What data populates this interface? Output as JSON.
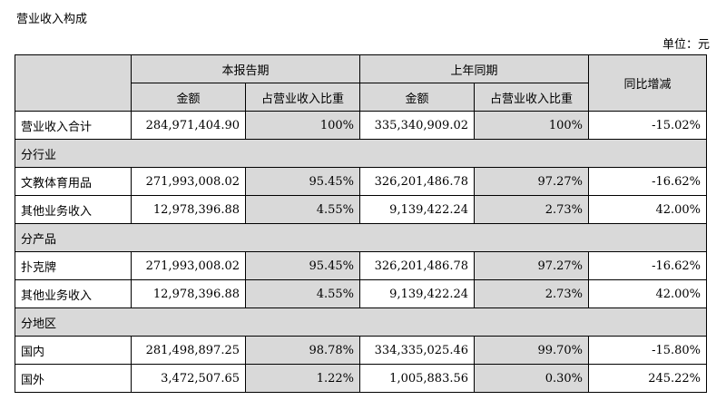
{
  "title": "营业收入构成",
  "unit": "单位：元",
  "header": {
    "current_period": "本报告期",
    "prior_period": "上年同期",
    "amount": "金额",
    "ratio": "占营业收入比重",
    "yoy": "同比增减"
  },
  "rows": [
    {
      "type": "data",
      "label": "营业收入合计",
      "cur_amount": "284,971,404.90",
      "cur_ratio": "100%",
      "prev_amount": "335,340,909.02",
      "prev_ratio": "100%",
      "yoy": "-15.02%"
    },
    {
      "type": "section",
      "label": "分行业"
    },
    {
      "type": "data",
      "label": "文教体育用品",
      "cur_amount": "271,993,008.02",
      "cur_ratio": "95.45%",
      "prev_amount": "326,201,486.78",
      "prev_ratio": "97.27%",
      "yoy": "-16.62%"
    },
    {
      "type": "data",
      "label": "其他业务收入",
      "cur_amount": "12,978,396.88",
      "cur_ratio": "4.55%",
      "prev_amount": "9,139,422.24",
      "prev_ratio": "2.73%",
      "yoy": "42.00%"
    },
    {
      "type": "section",
      "label": "分产品"
    },
    {
      "type": "data",
      "label": "扑克牌",
      "cur_amount": "271,993,008.02",
      "cur_ratio": "95.45%",
      "prev_amount": "326,201,486.78",
      "prev_ratio": "97.27%",
      "yoy": "-16.62%"
    },
    {
      "type": "data",
      "label": "其他业务收入",
      "cur_amount": "12,978,396.88",
      "cur_ratio": "4.55%",
      "prev_amount": "9,139,422.24",
      "prev_ratio": "2.73%",
      "yoy": "42.00%"
    },
    {
      "type": "section",
      "label": "分地区"
    },
    {
      "type": "data",
      "label": "国内",
      "cur_amount": "281,498,897.25",
      "cur_ratio": "98.78%",
      "prev_amount": "334,335,025.46",
      "prev_ratio": "99.70%",
      "yoy": "-15.80%"
    },
    {
      "type": "data",
      "label": "国外",
      "cur_amount": "3,472,507.65",
      "cur_ratio": "1.22%",
      "prev_amount": "1,005,883.56",
      "prev_ratio": "0.30%",
      "yoy": "245.22%"
    }
  ]
}
